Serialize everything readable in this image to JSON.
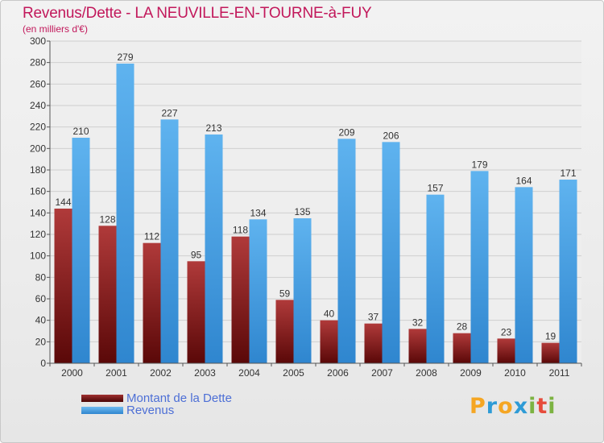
{
  "title": "Revenus/Dette - LA NEUVILLE-EN-TOURNE-à-FUY",
  "subtitle": "(en milliers d'€)",
  "chart_data": {
    "type": "bar",
    "categories": [
      "2000",
      "2001",
      "2002",
      "2003",
      "2004",
      "2005",
      "2006",
      "2007",
      "2008",
      "2009",
      "2010",
      "2011"
    ],
    "series": [
      {
        "name": "Montant de la Dette",
        "color": "#8b1a1a",
        "values": [
          144,
          128,
          112,
          95,
          118,
          59,
          40,
          37,
          32,
          28,
          23,
          19
        ]
      },
      {
        "name": "Revenus",
        "color": "#3d97e0",
        "values": [
          210,
          279,
          227,
          213,
          134,
          135,
          209,
          206,
          157,
          179,
          164,
          171
        ]
      }
    ],
    "ylim": [
      0,
      300
    ],
    "yticks": [
      0,
      20,
      40,
      60,
      80,
      100,
      120,
      140,
      160,
      180,
      200,
      220,
      240,
      260,
      280,
      300
    ],
    "grid": true
  },
  "legend": {
    "debt_label": "Montant de la Dette",
    "revenue_label": "Revenus"
  },
  "logo": {
    "letters": [
      "P",
      "r",
      "o",
      "x",
      "i",
      "t",
      "i"
    ],
    "colors": [
      "#f5a623",
      "#2e9bd6",
      "#f5a623",
      "#2e9bd6",
      "#7cb342",
      "#e74c3c",
      "#7cb342"
    ]
  }
}
